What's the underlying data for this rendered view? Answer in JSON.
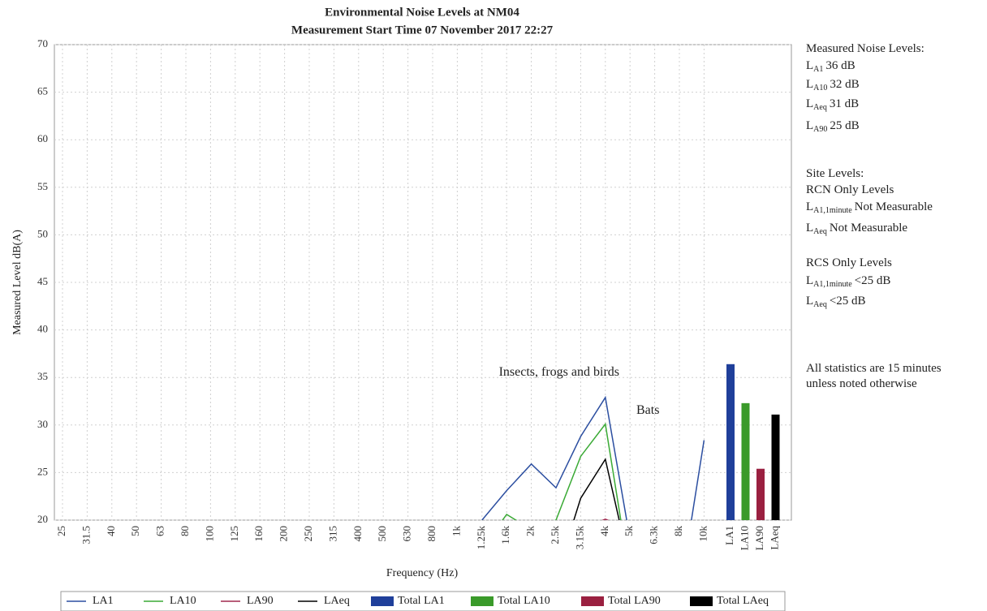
{
  "chart_data": {
    "type": "line",
    "title": "Environmental Noise Levels at NM04",
    "subtitle": "Measurement Start Time 07 November 2017 22:27",
    "x_label": "Frequency (Hz)",
    "y_label": "Measured Level dB(A)",
    "categories": [
      "25",
      "31.5",
      "40",
      "50",
      "63",
      "80",
      "100",
      "125",
      "160",
      "200",
      "250",
      "315",
      "400",
      "500",
      "630",
      "800",
      "1k",
      "1.25k",
      "1.6k",
      "2k",
      "2.5k",
      "3.15k",
      "4k",
      "5k",
      "6.3k",
      "8k",
      "10k",
      "LA1",
      "LA10",
      "LA90",
      "LAeq"
    ],
    "ylim": [
      20,
      70
    ],
    "yticks": [
      20,
      25,
      30,
      35,
      40,
      45,
      50,
      55,
      60,
      65,
      70
    ],
    "grid": true,
    "series": [
      {
        "name": "LA1",
        "type": "line",
        "color": "#2b4ea0",
        "values": [
          null,
          null,
          null,
          null,
          null,
          null,
          null,
          null,
          null,
          null,
          null,
          null,
          null,
          null,
          null,
          null,
          null,
          20,
          23.1,
          25.9,
          23.4,
          28.8,
          32.9,
          18,
          null,
          12,
          28.4,
          null,
          null,
          null,
          null
        ]
      },
      {
        "name": "LA10",
        "type": "line",
        "color": "#3aaa35",
        "values": [
          null,
          null,
          null,
          null,
          null,
          null,
          null,
          null,
          null,
          null,
          null,
          null,
          null,
          null,
          null,
          null,
          null,
          17,
          20.6,
          19,
          20,
          26.7,
          30.1,
          14,
          null,
          null,
          null,
          null,
          null,
          null,
          null
        ]
      },
      {
        "name": "LA90",
        "type": "line",
        "color": "#a0284e",
        "values": [
          null,
          null,
          null,
          null,
          null,
          null,
          null,
          null,
          null,
          null,
          null,
          null,
          null,
          null,
          null,
          null,
          null,
          null,
          null,
          null,
          null,
          19,
          20.1,
          19,
          null,
          null,
          null,
          null,
          null,
          null,
          null
        ]
      },
      {
        "name": "LAeq",
        "type": "line",
        "color": "#000000",
        "values": [
          null,
          null,
          null,
          null,
          null,
          null,
          null,
          null,
          null,
          null,
          null,
          null,
          null,
          null,
          null,
          null,
          null,
          null,
          null,
          null,
          14,
          22.3,
          26.4,
          15,
          null,
          null,
          null,
          null,
          null,
          null,
          null
        ]
      },
      {
        "name": "Total LA1",
        "type": "bar",
        "color": "#1f3f9a",
        "values": [
          null,
          null,
          null,
          null,
          null,
          null,
          null,
          null,
          null,
          null,
          null,
          null,
          null,
          null,
          null,
          null,
          null,
          null,
          null,
          null,
          null,
          null,
          null,
          null,
          null,
          null,
          null,
          36.4,
          null,
          null,
          null
        ]
      },
      {
        "name": "Total LA10",
        "type": "bar",
        "color": "#3a9a2a",
        "values": [
          null,
          null,
          null,
          null,
          null,
          null,
          null,
          null,
          null,
          null,
          null,
          null,
          null,
          null,
          null,
          null,
          null,
          null,
          null,
          null,
          null,
          null,
          null,
          null,
          null,
          null,
          null,
          null,
          32.3,
          null,
          null
        ]
      },
      {
        "name": "Total LA90",
        "type": "bar",
        "color": "#9a2040",
        "values": [
          null,
          null,
          null,
          null,
          null,
          null,
          null,
          null,
          null,
          null,
          null,
          null,
          null,
          null,
          null,
          null,
          null,
          null,
          null,
          null,
          null,
          null,
          null,
          null,
          null,
          null,
          null,
          null,
          null,
          25.4,
          null
        ]
      },
      {
        "name": "Total LAeq",
        "type": "bar",
        "color": "#000000",
        "values": [
          null,
          null,
          null,
          null,
          null,
          null,
          null,
          null,
          null,
          null,
          null,
          null,
          null,
          null,
          null,
          null,
          null,
          null,
          null,
          null,
          null,
          null,
          null,
          null,
          null,
          null,
          null,
          null,
          null,
          null,
          31.1
        ]
      }
    ],
    "annotations": [
      {
        "text": "Insects, frogs and birds",
        "category": 22,
        "value": 35.5
      },
      {
        "text": "Bats",
        "category": 25.6,
        "value": 31.5
      }
    ]
  },
  "side_panel": [
    {
      "text": "Measured Noise Levels:"
    },
    {
      "symbol": "L",
      "subscript": "A1",
      "text": "36 dB"
    },
    {
      "symbol": "L",
      "subscript": "A10",
      "text": "32 dB"
    },
    {
      "symbol": "L",
      "subscript": "Aeq",
      "text": "31 dB"
    },
    {
      "symbol": "L",
      "subscript": "A90",
      "text": "25 dB"
    },
    {
      "text": "Site Levels:"
    },
    {
      "text": "RCN Only Levels"
    },
    {
      "symbol": "L",
      "subscript": "A1,1minute",
      "text": "Not Measurable"
    },
    {
      "symbol": "L",
      "subscript": "Aeq",
      "text": "Not Measurable"
    },
    {
      "text": "RCS Only Levels"
    },
    {
      "symbol": "L",
      "subscript": "A1,1minute",
      "text": "<25 dB"
    },
    {
      "symbol": "L",
      "subscript": "Aeq",
      "text": "<25 dB"
    },
    {
      "text": "All statistics are 15 minutes"
    },
    {
      "text": "unless noted otherwise"
    }
  ]
}
